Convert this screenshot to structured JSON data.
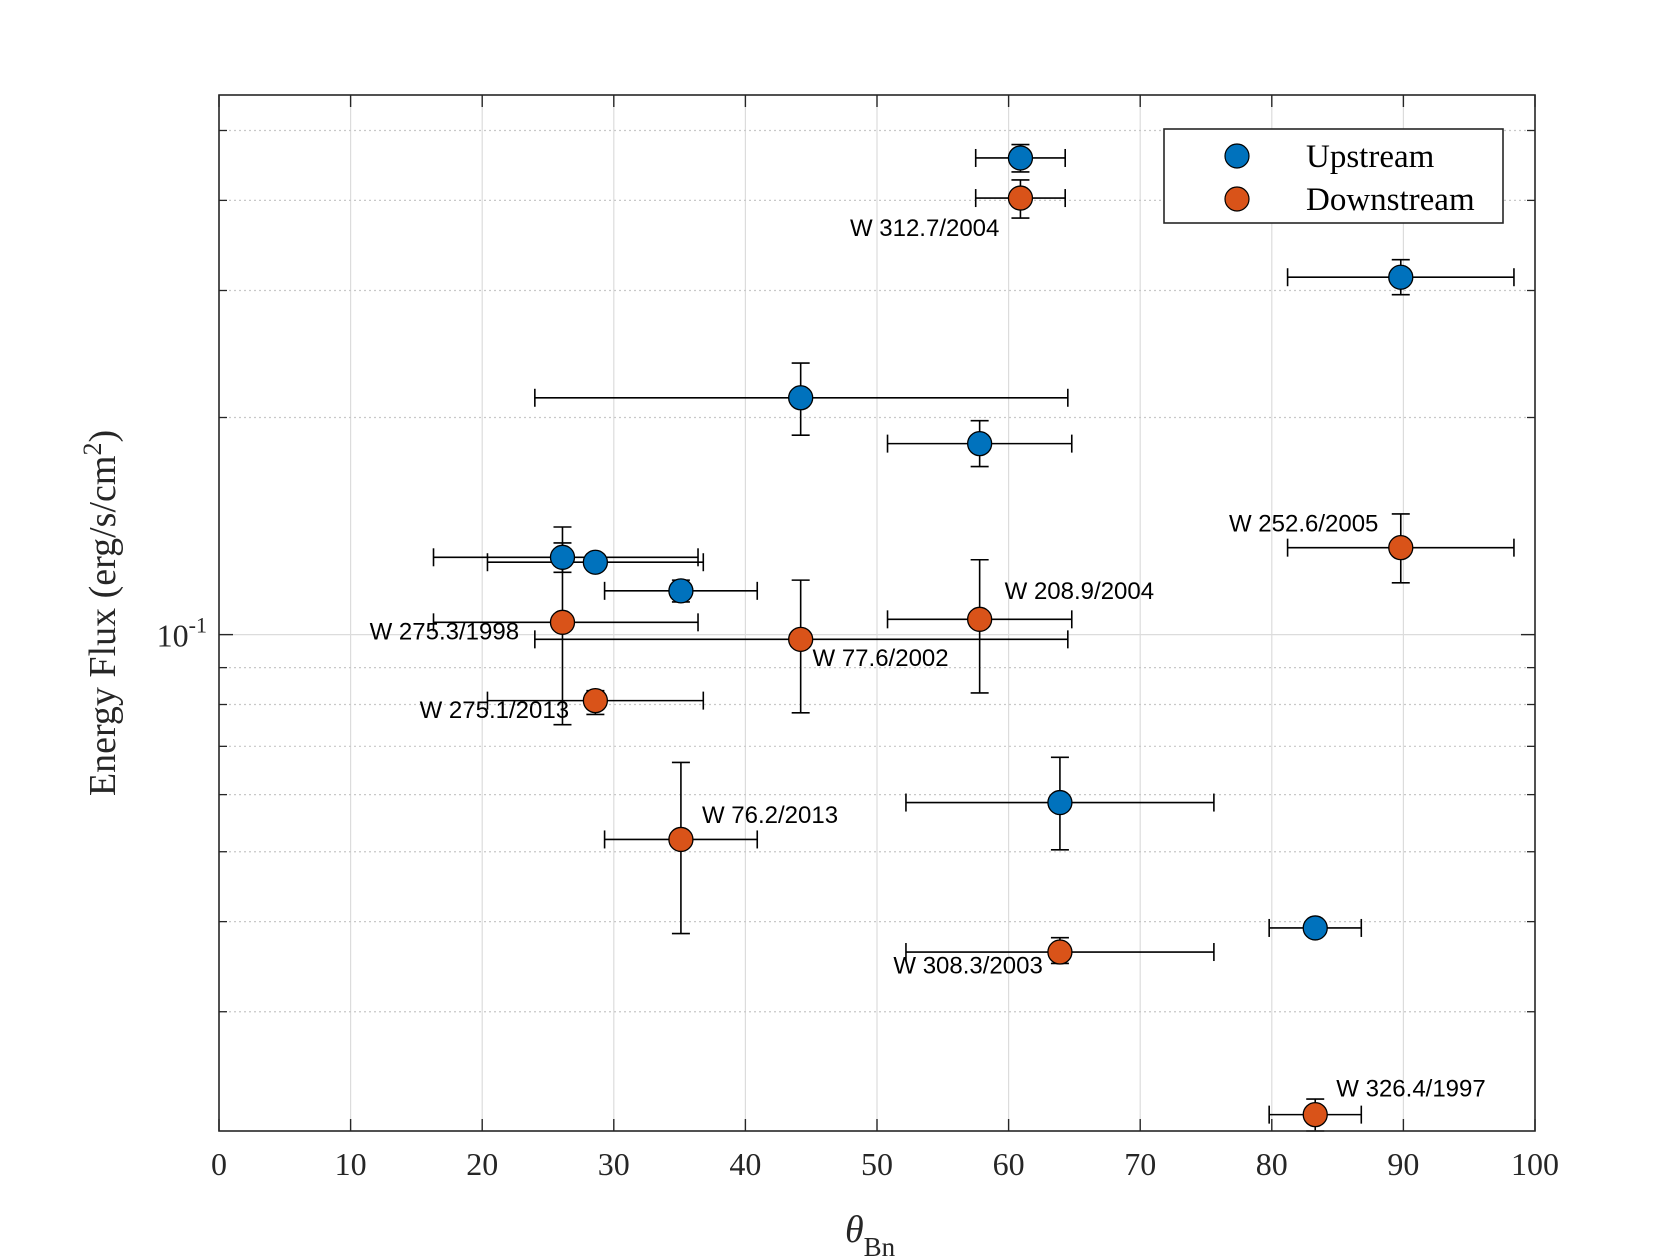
{
  "chart_data": {
    "type": "scatter",
    "title": "",
    "xlabel": "θ",
    "xlabel_sub": "Bn",
    "ylabel": "Energy Flux (erg/s/cm",
    "ylabel_sup": "2",
    "ylabel_close": ")",
    "yscale": "log",
    "xlim": [
      0,
      100
    ],
    "ylim": [
      0.0205,
      0.56
    ],
    "xticks": [
      0,
      10,
      20,
      30,
      40,
      50,
      60,
      70,
      80,
      90,
      100
    ],
    "xtick_labels": [
      "0",
      "10",
      "20",
      "30",
      "40",
      "50",
      "60",
      "70",
      "80",
      "90",
      "100"
    ],
    "ytick_major": {
      "value": 0.1,
      "base": "10",
      "exp": "-1"
    },
    "ytick_minor": [
      0.03,
      0.04,
      0.05,
      0.06,
      0.07,
      0.08,
      0.09,
      0.2,
      0.3,
      0.4,
      0.5
    ],
    "grid": true,
    "legend": {
      "position": "top-right",
      "entries": [
        "Upstream",
        "Downstream"
      ]
    },
    "colors": {
      "Upstream": "#0072bd",
      "Downstream": "#d95319"
    },
    "series": [
      {
        "name": "Upstream",
        "points": [
          {
            "x": 60.9,
            "y": 0.458,
            "xerr": [
              57.5,
              64.3
            ],
            "yerr": [
              0.438,
              0.478
            ]
          },
          {
            "x": 89.8,
            "y": 0.313,
            "xerr": [
              81.2,
              98.4
            ],
            "yerr": [
              0.296,
              0.331
            ]
          },
          {
            "x": 44.2,
            "y": 0.213,
            "xerr": [
              24.0,
              64.5
            ],
            "yerr": [
              0.189,
              0.238
            ]
          },
          {
            "x": 57.8,
            "y": 0.184,
            "xerr": [
              50.8,
              64.8
            ],
            "yerr": [
              0.171,
              0.198
            ]
          },
          {
            "x": 26.1,
            "y": 0.128,
            "xerr": [
              16.3,
              36.4
            ],
            "yerr": [
              0.122,
              0.134
            ]
          },
          {
            "x": 28.6,
            "y": 0.126,
            "xerr": [
              20.4,
              36.8
            ],
            "yerr": [
              0.123,
              0.128
            ]
          },
          {
            "x": 35.1,
            "y": 0.115,
            "xerr": [
              29.3,
              40.9
            ],
            "yerr": [
              0.111,
              0.119
            ]
          },
          {
            "x": 63.9,
            "y": 0.0585,
            "xerr": [
              52.2,
              75.6
            ],
            "yerr": [
              0.0503,
              0.0676
            ]
          },
          {
            "x": 83.3,
            "y": 0.0392,
            "xerr": [
              79.8,
              86.8
            ],
            "yerr": [
              0.0384,
              0.0398
            ]
          }
        ]
      },
      {
        "name": "Downstream",
        "points": [
          {
            "x": 60.9,
            "y": 0.403,
            "xerr": [
              57.5,
              64.3
            ],
            "yerr": [
              0.378,
              0.427
            ]
          },
          {
            "x": 89.8,
            "y": 0.132,
            "xerr": [
              81.2,
              98.4
            ],
            "yerr": [
              0.118,
              0.147
            ]
          },
          {
            "x": 26.1,
            "y": 0.104,
            "xerr": [
              16.3,
              36.4
            ],
            "yerr": [
              0.075,
              0.141
            ]
          },
          {
            "x": 57.8,
            "y": 0.105,
            "xerr": [
              50.8,
              64.8
            ],
            "yerr": [
              0.083,
              0.127
            ]
          },
          {
            "x": 44.2,
            "y": 0.0985,
            "xerr": [
              24.0,
              64.5
            ],
            "yerr": [
              0.0779,
              0.119
            ]
          },
          {
            "x": 28.6,
            "y": 0.081,
            "xerr": [
              20.4,
              36.8
            ],
            "yerr": [
              0.0775,
              0.0836
            ]
          },
          {
            "x": 35.1,
            "y": 0.052,
            "xerr": [
              29.3,
              40.9
            ],
            "yerr": [
              0.0385,
              0.0665
            ]
          },
          {
            "x": 63.9,
            "y": 0.0363,
            "xerr": [
              52.2,
              75.6
            ],
            "yerr": [
              0.035,
              0.038
            ]
          },
          {
            "x": 83.3,
            "y": 0.0216,
            "xerr": [
              79.8,
              86.8
            ],
            "yerr": [
              0.0205,
              0.0227
            ]
          }
        ]
      }
    ],
    "annotations": [
      {
        "text": "W 312.7/2004",
        "x": 59.3,
        "y": 0.357,
        "anchor": "end"
      },
      {
        "text": "W 252.6/2005",
        "x": 88.1,
        "y": 0.139,
        "anchor": "end"
      },
      {
        "text": "W 208.9/2004",
        "x": 59.7,
        "y": 0.112,
        "anchor": "start"
      },
      {
        "text": "W 275.3/1998",
        "x": 22.8,
        "y": 0.0985,
        "anchor": "end"
      },
      {
        "text": "W 77.6/2002",
        "x": 45.1,
        "y": 0.0905,
        "anchor": "start"
      },
      {
        "text": "W 275.1/2013",
        "x": 26.6,
        "y": 0.0766,
        "anchor": "end"
      },
      {
        "text": "W 76.2/2013",
        "x": 36.7,
        "y": 0.0548,
        "anchor": "start"
      },
      {
        "text": "W 308.3/2003",
        "x": 62.6,
        "y": 0.0339,
        "anchor": "end"
      },
      {
        "text": "W 326.4/1997",
        "x": 84.9,
        "y": 0.0229,
        "anchor": "start"
      }
    ]
  }
}
